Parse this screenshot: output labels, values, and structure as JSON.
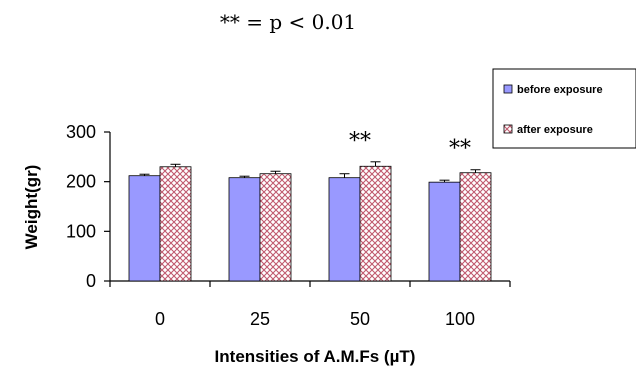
{
  "significance_note": "** = p < 0.01",
  "chart_data": {
    "type": "bar",
    "xlabel": "Intensities of A.M.Fs (µT)",
    "ylabel": "Weight(gr)",
    "categories": [
      "0",
      "25",
      "50",
      "100"
    ],
    "ylim": [
      0,
      300
    ],
    "yticks": [
      "0",
      "100",
      "200",
      "300"
    ],
    "grid": false,
    "legend_position": "top-right",
    "series": [
      {
        "name": "before exposure",
        "values": [
          212,
          208,
          208,
          199
        ],
        "errors": [
          3,
          3,
          8,
          4
        ],
        "color": "#9999ff",
        "pattern": "solid"
      },
      {
        "name": "after exposure",
        "values": [
          230,
          216,
          231,
          218
        ],
        "errors": [
          5,
          5,
          9,
          6
        ],
        "color": "#cc6677",
        "pattern": "crosshatch"
      }
    ],
    "annotations": [
      {
        "category": "50",
        "text": "**"
      },
      {
        "category": "100",
        "text": "**"
      }
    ]
  }
}
